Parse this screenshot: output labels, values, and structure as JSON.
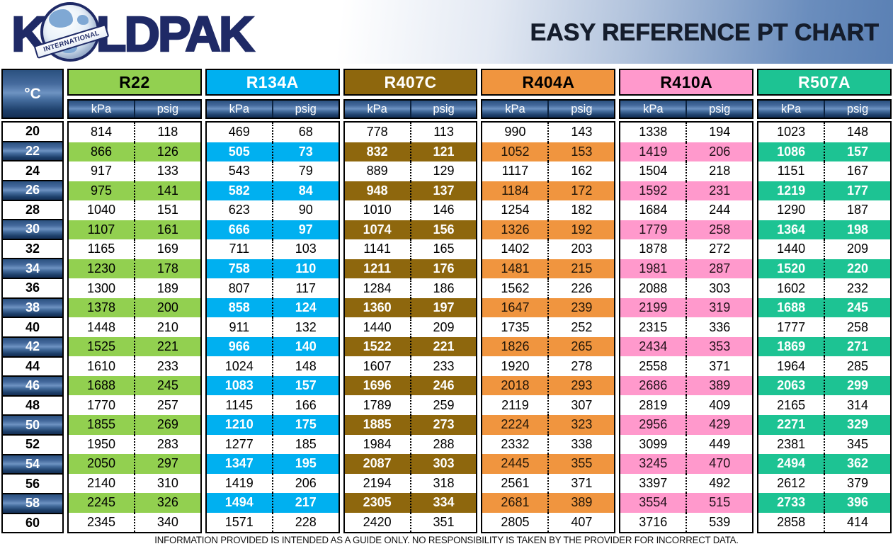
{
  "header": {
    "logo_k": "K",
    "logo_rest": "LDPAK",
    "logo_badge": "INTERNATIONAL",
    "title": "EASY REFERENCE PT CHART"
  },
  "footer": {
    "disclaimer": "INFORMATION PROVIDED IS INTENDED AS A GUIDE ONLY. NO RESPONSIBILITY IS TAKEN BY THE PROVIDER FOR INCORRECT DATA."
  },
  "colors": {
    "banner_blue": "#5a80b4",
    "logo_navy": "#1f2a66",
    "header_cell_blue_dark": "#142f55",
    "header_cell_blue_light": "#6e93c2"
  },
  "chart_data": {
    "type": "table",
    "title": "EASY REFERENCE PT CHART",
    "temp_header": "°C",
    "unit_labels": [
      "kPa",
      "psig"
    ],
    "temperatures": [
      20,
      22,
      24,
      26,
      28,
      30,
      32,
      34,
      36,
      38,
      40,
      42,
      44,
      46,
      48,
      50,
      52,
      54,
      56,
      58,
      60
    ],
    "highlighted_temperatures": [
      22,
      26,
      30,
      34,
      38,
      42,
      46,
      50,
      54,
      58
    ],
    "series": [
      {
        "name": "R22",
        "color": "#92D050",
        "header_text": "#000000",
        "highlight_text": "#000000",
        "highlight_bold": false,
        "kpa": [
          814,
          866,
          917,
          975,
          1040,
          1107,
          1165,
          1230,
          1300,
          1378,
          1448,
          1525,
          1610,
          1688,
          1770,
          1855,
          1950,
          2050,
          2140,
          2245,
          2345
        ],
        "psig": [
          118,
          126,
          133,
          141,
          151,
          161,
          169,
          178,
          189,
          200,
          210,
          221,
          233,
          245,
          257,
          269,
          283,
          297,
          310,
          326,
          340
        ]
      },
      {
        "name": "R134A",
        "color": "#00B0F0",
        "header_text": "#FFFFFF",
        "highlight_text": "#FFFFFF",
        "highlight_bold": true,
        "kpa": [
          469,
          505,
          543,
          582,
          623,
          666,
          711,
          758,
          807,
          858,
          911,
          966,
          1024,
          1083,
          1145,
          1210,
          1277,
          1347,
          1419,
          1494,
          1571
        ],
        "psig": [
          68,
          73,
          79,
          84,
          90,
          97,
          103,
          110,
          117,
          124,
          132,
          140,
          148,
          157,
          166,
          175,
          185,
          195,
          206,
          217,
          228
        ]
      },
      {
        "name": "R407C",
        "color": "#8E670D",
        "header_text": "#FFFFFF",
        "highlight_text": "#FFFFFF",
        "highlight_bold": true,
        "kpa": [
          778,
          832,
          889,
          948,
          1010,
          1074,
          1141,
          1211,
          1284,
          1360,
          1440,
          1522,
          1607,
          1696,
          1789,
          1885,
          1984,
          2087,
          2194,
          2305,
          2420
        ],
        "psig": [
          113,
          121,
          129,
          137,
          146,
          156,
          165,
          176,
          186,
          197,
          209,
          221,
          233,
          246,
          259,
          273,
          288,
          303,
          318,
          334,
          351
        ]
      },
      {
        "name": "R404A",
        "color": "#F0953F",
        "header_text": "#000000",
        "highlight_text": "#201508",
        "highlight_bold": false,
        "kpa": [
          990,
          1052,
          1117,
          1184,
          1254,
          1326,
          1402,
          1481,
          1562,
          1647,
          1735,
          1826,
          1920,
          2018,
          2119,
          2224,
          2332,
          2445,
          2561,
          2681,
          2805
        ],
        "psig": [
          143,
          153,
          162,
          172,
          182,
          192,
          203,
          215,
          226,
          239,
          252,
          265,
          278,
          293,
          307,
          323,
          338,
          355,
          371,
          389,
          407
        ]
      },
      {
        "name": "R410A",
        "color": "#FF99CC",
        "header_text": "#000000",
        "highlight_text": "#201018",
        "highlight_bold": false,
        "kpa": [
          1338,
          1419,
          1504,
          1592,
          1684,
          1779,
          1878,
          1981,
          2088,
          2199,
          2315,
          2434,
          2558,
          2686,
          2819,
          2956,
          3099,
          3245,
          3397,
          3554,
          3716
        ],
        "psig": [
          194,
          206,
          218,
          231,
          244,
          258,
          272,
          287,
          303,
          319,
          336,
          353,
          371,
          389,
          409,
          429,
          449,
          470,
          492,
          515,
          539
        ]
      },
      {
        "name": "R507A",
        "color": "#1DC393",
        "header_text": "#FFFFFF",
        "highlight_text": "#FFFFFF",
        "highlight_bold": true,
        "kpa": [
          1023,
          1086,
          1151,
          1219,
          1290,
          1364,
          1440,
          1520,
          1602,
          1688,
          1777,
          1869,
          1964,
          2063,
          2165,
          2271,
          2381,
          2494,
          2612,
          2733,
          2858
        ],
        "psig": [
          148,
          157,
          167,
          177,
          187,
          198,
          209,
          220,
          232,
          245,
          258,
          271,
          285,
          299,
          314,
          329,
          345,
          362,
          379,
          396,
          414
        ]
      }
    ]
  }
}
